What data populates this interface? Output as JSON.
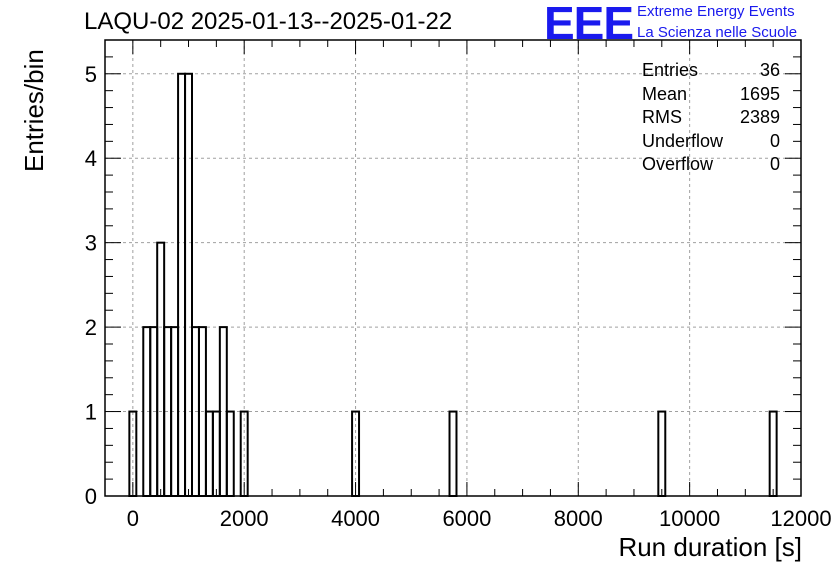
{
  "title": "LAQU-02 2025-01-13--2025-01-22",
  "logo": {
    "mark": "EEE",
    "line1": "Extreme Energy Events",
    "line2": "La Scienza nelle Scuole",
    "color": "#1a1aee"
  },
  "stats": [
    {
      "label": "Entries",
      "value": "36"
    },
    {
      "label": "Mean",
      "value": "1695"
    },
    {
      "label": "RMS",
      "value": "2389"
    },
    {
      "label": "Underflow",
      "value": "0"
    },
    {
      "label": "Overflow",
      "value": "0"
    }
  ],
  "chart_data": {
    "type": "histogram",
    "title": "LAQU-02 2025-01-13--2025-01-22",
    "xlabel": "Run duration [s]",
    "ylabel": "Entries/bin",
    "xlim": [
      -500,
      12000
    ],
    "ylim": [
      0,
      5.4
    ],
    "bin_width": 125,
    "xticks": [
      0,
      2000,
      4000,
      6000,
      8000,
      10000,
      12000
    ],
    "yticks": [
      0,
      1,
      2,
      3,
      4,
      5
    ],
    "grid": true,
    "line_color": "#000000",
    "bins": [
      {
        "x0": -62.5,
        "count": 1
      },
      {
        "x0": 187.5,
        "count": 2
      },
      {
        "x0": 312.5,
        "count": 2
      },
      {
        "x0": 437.5,
        "count": 3
      },
      {
        "x0": 562.5,
        "count": 2
      },
      {
        "x0": 687.5,
        "count": 2
      },
      {
        "x0": 812.5,
        "count": 5
      },
      {
        "x0": 937.5,
        "count": 5
      },
      {
        "x0": 1062.5,
        "count": 2
      },
      {
        "x0": 1187.5,
        "count": 2
      },
      {
        "x0": 1312.5,
        "count": 1
      },
      {
        "x0": 1437.5,
        "count": 1
      },
      {
        "x0": 1562.5,
        "count": 2
      },
      {
        "x0": 1687.5,
        "count": 1
      },
      {
        "x0": 1937.5,
        "count": 1
      },
      {
        "x0": 3937.5,
        "count": 1
      },
      {
        "x0": 5687.5,
        "count": 1
      },
      {
        "x0": 9437.5,
        "count": 1
      },
      {
        "x0": 11437.5,
        "count": 1
      }
    ]
  }
}
